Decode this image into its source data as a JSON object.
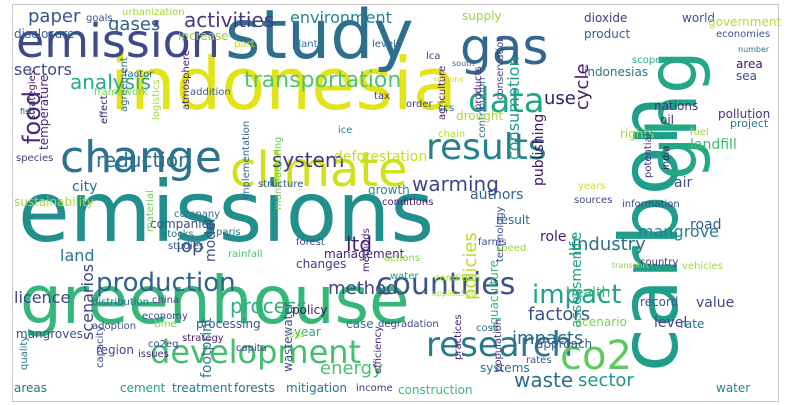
{
  "wordcloud": {
    "words": [
      {
        "t": "emissions",
        "c": "#21908d"
      },
      {
        "t": "indonesia",
        "c": "#e2e418"
      },
      {
        "t": "greenhouse",
        "c": "#35b779"
      },
      {
        "t": "carbon",
        "c": "#1f9e89"
      },
      {
        "t": "study",
        "c": "#2e6f8e"
      },
      {
        "t": "climate",
        "c": "#d0e11c"
      },
      {
        "t": "emission",
        "c": "#3e4a89"
      },
      {
        "t": "change",
        "c": "#2c728e"
      },
      {
        "t": "ghg",
        "c": "#22a884"
      },
      {
        "t": "gas",
        "c": "#31688e"
      },
      {
        "t": "results",
        "c": "#27808e"
      },
      {
        "t": "development",
        "c": "#44bf70"
      },
      {
        "t": "research",
        "c": "#2a788e"
      },
      {
        "t": "data",
        "c": "#21a585"
      },
      {
        "t": "co2",
        "c": "#5ec962"
      },
      {
        "t": "countries",
        "c": "#3b528b"
      },
      {
        "t": "production",
        "c": "#33638d"
      },
      {
        "t": "impact",
        "c": "#20a486"
      },
      {
        "t": "food",
        "c": "#472d7b"
      },
      {
        "t": "transportation",
        "c": "#52c569"
      },
      {
        "t": "reduction",
        "c": "#2c738e"
      },
      {
        "t": "system",
        "c": "#46337f"
      },
      {
        "t": "warming",
        "c": "#3f4889"
      },
      {
        "t": "activities",
        "c": "#443a83"
      },
      {
        "t": "gases",
        "c": "#355f8d"
      },
      {
        "t": "paper",
        "c": "#3b528b"
      },
      {
        "t": "sectors",
        "c": "#3e4989"
      },
      {
        "t": "analysis",
        "c": "#25ac82"
      },
      {
        "t": "cycle",
        "c": "#48186a"
      },
      {
        "t": "use",
        "c": "#2d1e6c"
      },
      {
        "t": "consumption",
        "c": "#1f9a8a"
      },
      {
        "t": "policies",
        "c": "#b5de2b"
      },
      {
        "t": "environment",
        "c": "#26828e"
      },
      {
        "t": "process",
        "c": "#2db27d"
      },
      {
        "t": "method",
        "c": "#3f4788"
      },
      {
        "t": "factors",
        "c": "#3a538b"
      },
      {
        "t": "impacts",
        "c": "#31688e"
      },
      {
        "t": "industry",
        "c": "#2e6e8e"
      },
      {
        "t": "energy",
        "c": "#4ac16d"
      },
      {
        "t": "waste",
        "c": "#2f6c8e"
      },
      {
        "t": "sector",
        "c": "#1f988b"
      },
      {
        "t": "mangrove",
        "c": "#26828e"
      },
      {
        "t": "iop",
        "c": "#3e4a89"
      },
      {
        "t": "ltd",
        "c": "#482374"
      },
      {
        "t": "model",
        "c": "#3b528b"
      },
      {
        "t": "land",
        "c": "#2c728e"
      },
      {
        "t": "licence",
        "c": "#414487"
      },
      {
        "t": "publishing",
        "c": "#471164"
      },
      {
        "t": "life",
        "c": "#22a785"
      },
      {
        "t": "authors",
        "c": "#33628d"
      },
      {
        "t": "health",
        "c": "#35b779"
      },
      {
        "t": "scenarios",
        "c": "#404688"
      },
      {
        "t": "assessment",
        "c": "#1fa187"
      },
      {
        "t": "deforestation",
        "c": "#c2df23"
      },
      {
        "t": "temperature",
        "c": "#482576"
      },
      {
        "t": "landfill",
        "c": "#3fbc73"
      },
      {
        "t": "road",
        "c": "#34618d"
      },
      {
        "t": "air",
        "c": "#3b528b"
      },
      {
        "t": "pollution",
        "c": "#46327e"
      },
      {
        "t": "rights",
        "c": "#a0da39"
      },
      {
        "t": "dioxide",
        "c": "#453781"
      },
      {
        "t": "product",
        "c": "#34618d"
      },
      {
        "t": "supply",
        "c": "#95d840"
      },
      {
        "t": "world",
        "c": "#39568c"
      },
      {
        "t": "government",
        "c": "#b8de29"
      },
      {
        "t": "economies",
        "c": "#3a548c"
      },
      {
        "t": "indonesias",
        "c": "#2c738e"
      },
      {
        "t": "area",
        "c": "#481467"
      },
      {
        "t": "sea",
        "c": "#3e4c8a"
      },
      {
        "t": "nations",
        "c": "#46337f"
      },
      {
        "t": "oil",
        "c": "#472c7a"
      },
      {
        "t": "project",
        "c": "#2b758e"
      },
      {
        "t": "growth",
        "c": "#23888e"
      },
      {
        "t": "city",
        "c": "#2f6b8e"
      },
      {
        "t": "companies",
        "c": "#3d4d8a"
      },
      {
        "t": "sustainability",
        "c": "#a2da37"
      },
      {
        "t": "mangroves",
        "c": "#3a538b"
      },
      {
        "t": "quality",
        "c": "#2a788e"
      },
      {
        "t": "region",
        "c": "#3f4889"
      },
      {
        "t": "areas",
        "c": "#2e6e8e"
      },
      {
        "t": "cement",
        "c": "#1fa188"
      },
      {
        "t": "treatment",
        "c": "#2a778e"
      },
      {
        "t": "forests",
        "c": "#2d708e"
      },
      {
        "t": "mitigation",
        "c": "#2b748e"
      },
      {
        "t": "income",
        "c": "#46307e"
      },
      {
        "t": "construction",
        "c": "#3aba76"
      },
      {
        "t": "systems",
        "c": "#2e6f8e"
      },
      {
        "t": "rates",
        "c": "#365c8d"
      },
      {
        "t": "water",
        "c": "#24868e"
      },
      {
        "t": "wastewater",
        "c": "#3d4e8a"
      },
      {
        "t": "processing",
        "c": "#39558c"
      },
      {
        "t": "policy",
        "c": "#471365"
      },
      {
        "t": "year",
        "c": "#22a884"
      },
      {
        "t": "changes",
        "c": "#424086"
      },
      {
        "t": "management",
        "c": "#482374"
      },
      {
        "t": "case",
        "c": "#2c718e"
      },
      {
        "t": "footprint",
        "c": "#2a788e"
      },
      {
        "t": "capita",
        "c": "#443b84"
      },
      {
        "t": "strategy",
        "c": "#482475"
      },
      {
        "t": "capacity",
        "c": "#3f4889"
      },
      {
        "t": "adoption",
        "c": "#3c508b"
      },
      {
        "t": "distribution",
        "c": "#31668e"
      },
      {
        "t": "china",
        "c": "#424186"
      },
      {
        "t": "approach",
        "c": "#355e8d"
      },
      {
        "t": "scenario",
        "c": "#7ad151"
      },
      {
        "t": "level",
        "c": "#414487"
      },
      {
        "t": "rate",
        "c": "#2b748e"
      },
      {
        "t": "value",
        "c": "#3f4788"
      },
      {
        "t": "record",
        "c": "#38598c"
      },
      {
        "t": "role",
        "c": "#481a6c"
      },
      {
        "t": "result",
        "c": "#32658e"
      },
      {
        "t": "speed",
        "c": "#9bd93c"
      },
      {
        "t": "aquaculture",
        "c": "#37b878"
      },
      {
        "t": "technology",
        "c": "#3c4f8a"
      },
      {
        "t": "contribution",
        "c": "#2c728e"
      },
      {
        "t": "conservation",
        "c": "#404588"
      },
      {
        "t": "drought",
        "c": "#a8db34"
      },
      {
        "t": "agriculture",
        "c": "#481c6e"
      },
      {
        "t": "manufacturing",
        "c": "#6ccd5a"
      },
      {
        "t": "atmosphere",
        "c": "#482878"
      },
      {
        "t": "implementation",
        "c": "#31678e"
      },
      {
        "t": "structure",
        "c": "#3a548c"
      },
      {
        "t": "forest",
        "c": "#3b528b"
      },
      {
        "t": "company",
        "c": "#2d708e"
      },
      {
        "t": "stocks",
        "c": "#2e6d8e"
      },
      {
        "t": "studies",
        "c": "#365d8d"
      },
      {
        "t": "material",
        "c": "#6ece58"
      },
      {
        "t": "rainfall",
        "c": "#4cc26c"
      },
      {
        "t": "actions",
        "c": "#85d54a"
      },
      {
        "t": "methods",
        "c": "#482173"
      },
      {
        "t": "degradation",
        "c": "#3f4788"
      },
      {
        "t": "condition",
        "c": "#aadc32"
      },
      {
        "t": "application",
        "c": "#b2dd2d"
      },
      {
        "t": "population",
        "c": "#46327e"
      },
      {
        "t": "cost",
        "c": "#2e6e8e"
      },
      {
        "t": "practices",
        "c": "#482173"
      },
      {
        "t": "efficiency",
        "c": "#482979"
      },
      {
        "t": "loss",
        "c": "#9bd93c"
      },
      {
        "t": "issues",
        "c": "#482071"
      },
      {
        "t": "economy",
        "c": "#3d4d8a"
      },
      {
        "t": "time",
        "c": "#7fd34e"
      },
      {
        "t": "co2eq",
        "c": "#3e4a89"
      },
      {
        "t": "species",
        "c": "#443a83"
      },
      {
        "t": "conditions",
        "c": "#481a6c"
      },
      {
        "t": "paris",
        "c": "#2c718e"
      },
      {
        "t": "fuel",
        "c": "#a2da37"
      },
      {
        "t": "india",
        "c": "#2d1f6d"
      },
      {
        "t": "potential",
        "c": "#453882"
      },
      {
        "t": "information",
        "c": "#404588"
      },
      {
        "t": "country",
        "c": "#46307e"
      },
      {
        "t": "vehicles",
        "c": "#9fda3a"
      },
      {
        "t": "transport",
        "c": "#90d743"
      },
      {
        "t": "sources",
        "c": "#404588"
      },
      {
        "t": "years",
        "c": "#c8e020"
      },
      {
        "t": "farms",
        "c": "#3b518b"
      },
      {
        "t": "products",
        "c": "#472d7b"
      },
      {
        "t": "ccs",
        "c": "#31668e"
      },
      {
        "t": "chain",
        "c": "#b0dd2f"
      },
      {
        "t": "ice",
        "c": "#23898e"
      },
      {
        "t": "tax",
        "c": "#453781"
      },
      {
        "t": "lca",
        "c": "#3f4889"
      },
      {
        "t": "plant",
        "c": "#2b758e"
      },
      {
        "t": "levels",
        "c": "#32648e"
      },
      {
        "t": "regions",
        "c": "#c8e020"
      },
      {
        "t": "order",
        "c": "#3f4889"
      },
      {
        "t": "addition",
        "c": "#38598c"
      },
      {
        "t": "agreement",
        "c": "#2f6b8e"
      },
      {
        "t": "logistics",
        "c": "#a8db34"
      },
      {
        "t": "effect",
        "c": "#2d1e6c"
      },
      {
        "t": "framework",
        "c": "#7ad151"
      },
      {
        "t": "factor",
        "c": "#34608d"
      },
      {
        "t": "strategies",
        "c": "#481769"
      },
      {
        "t": "disclosure",
        "c": "#31678e"
      },
      {
        "t": "goals",
        "c": "#3c4f8a"
      },
      {
        "t": "urbanization",
        "c": "#9bd93c"
      },
      {
        "t": "increase",
        "c": "#90d743"
      },
      {
        "t": "part",
        "c": "#c5e021"
      },
      {
        "t": "south",
        "c": "#31678e"
      },
      {
        "t": "scope",
        "c": "#25ac82"
      },
      {
        "t": "number",
        "c": "#2a768e"
      },
      {
        "t": "fish",
        "c": "#3d4e8a"
      },
      {
        "t": "water",
        "c": "#1f9e89"
      }
    ]
  }
}
